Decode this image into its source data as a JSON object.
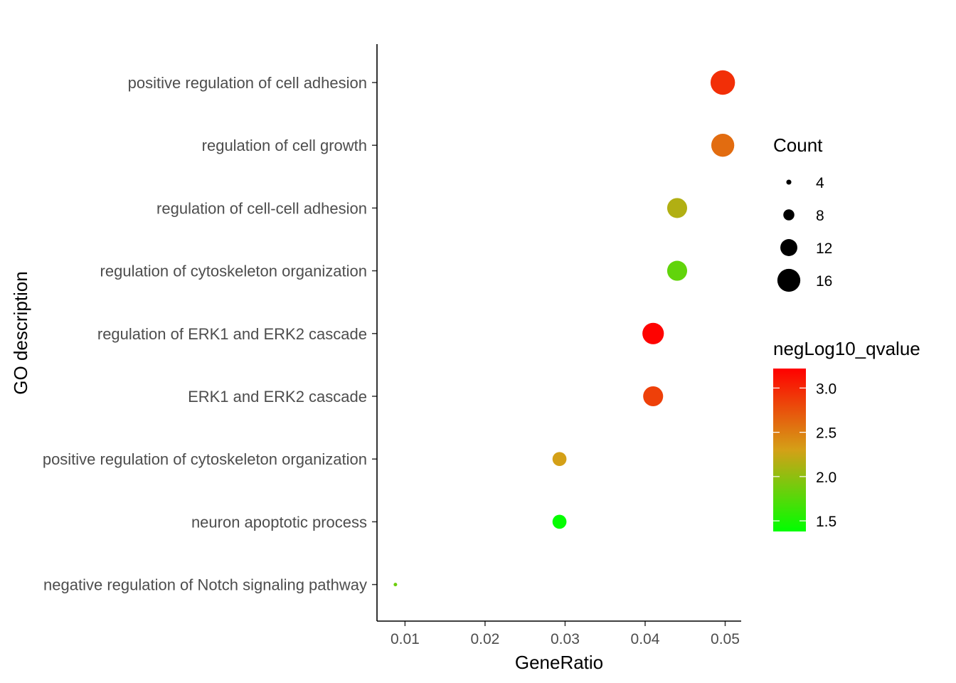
{
  "chart_data": {
    "type": "scatter",
    "xlabel": "GeneRatio",
    "ylabel": "GO description",
    "xlim": [
      0.0065,
      0.052
    ],
    "x_ticks": [
      0.01,
      0.02,
      0.03,
      0.04,
      0.05
    ],
    "x_tick_labels": [
      "0.01",
      "0.02",
      "0.03",
      "0.04",
      "0.05"
    ],
    "grid": false,
    "legend_position": "right",
    "points": [
      {
        "term": "positive regulation of cell adhesion",
        "x": 0.0497,
        "count": 17,
        "negLog10_qvalue": 2.95
      },
      {
        "term": "regulation of cell growth",
        "x": 0.0497,
        "count": 16,
        "negLog10_qvalue": 2.6
      },
      {
        "term": "regulation of cell-cell adhesion",
        "x": 0.044,
        "count": 14,
        "negLog10_qvalue": 2.15
      },
      {
        "term": "regulation of cytoskeleton organization",
        "x": 0.044,
        "count": 14,
        "negLog10_qvalue": 1.8
      },
      {
        "term": "regulation of ERK1 and ERK2 cascade",
        "x": 0.041,
        "count": 15,
        "negLog10_qvalue": 3.2
      },
      {
        "term": "ERK1 and ERK2 cascade",
        "x": 0.041,
        "count": 14,
        "negLog10_qvalue": 2.85
      },
      {
        "term": "positive regulation of cytoskeleton organization",
        "x": 0.0293,
        "count": 10,
        "negLog10_qvalue": 2.3
      },
      {
        "term": "neuron apoptotic process",
        "x": 0.0293,
        "count": 10,
        "negLog10_qvalue": 1.4
      },
      {
        "term": "negative regulation of Notch signaling pathway",
        "x": 0.0088,
        "count": 3,
        "negLog10_qvalue": 1.85
      }
    ],
    "size_legend": {
      "title": "Count",
      "values": [
        4,
        8,
        12,
        16
      ],
      "labels": [
        "4",
        "8",
        "12",
        "16"
      ]
    },
    "color_legend": {
      "title": "negLog10_qvalue",
      "range": [
        1.38,
        3.22
      ],
      "low_color": "#00ff00",
      "mid_color": "#d4a017",
      "high_color": "#ff0000",
      "breaks": [
        1.5,
        2.0,
        2.5,
        3.0
      ],
      "labels": [
        "1.5",
        "2.0",
        "2.5",
        "3.0"
      ]
    }
  }
}
